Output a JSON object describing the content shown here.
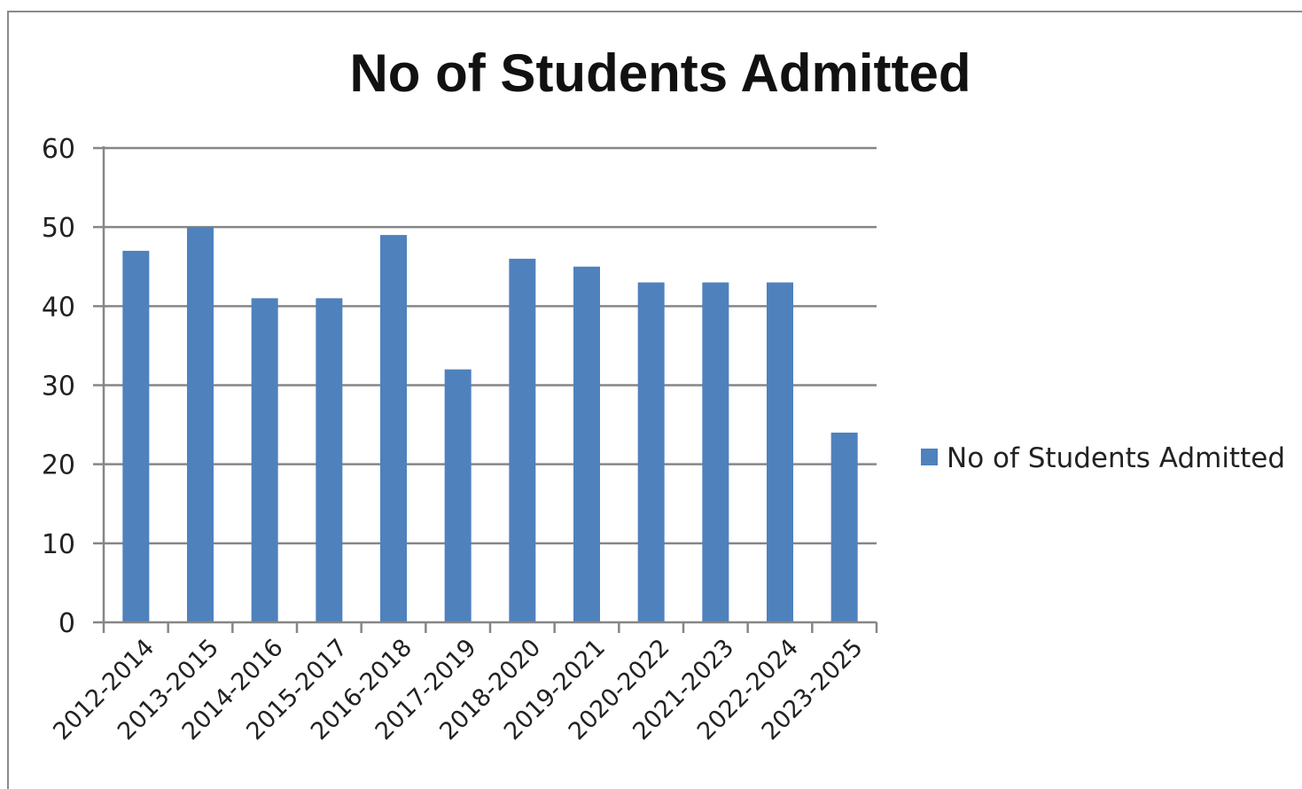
{
  "chart_data": {
    "type": "bar",
    "title": "No of Students Admitted",
    "xlabel": "",
    "ylabel": "",
    "categories": [
      "2012-2014",
      "2013-2015",
      "2014-2016",
      "2015-2017",
      "2016-2018",
      "2017-2019",
      "2018-2020",
      "2019-2021",
      "2020-2022",
      "2021-2023",
      "2022-2024",
      "2023-2025"
    ],
    "series": [
      {
        "name": "No of Students Admitted",
        "values": [
          47,
          50,
          41,
          41,
          49,
          32,
          46,
          45,
          43,
          43,
          43,
          24
        ],
        "color": "#4f81bd"
      }
    ],
    "ylim": [
      0,
      60
    ],
    "yticks": [
      "0",
      "10",
      "20",
      "30",
      "40",
      "50",
      "60"
    ],
    "grid": true,
    "legend_position": "right"
  },
  "colors": {
    "bar": "#4f81bd",
    "gridline": "#868686",
    "axis": "#868686",
    "text": "#222222"
  }
}
